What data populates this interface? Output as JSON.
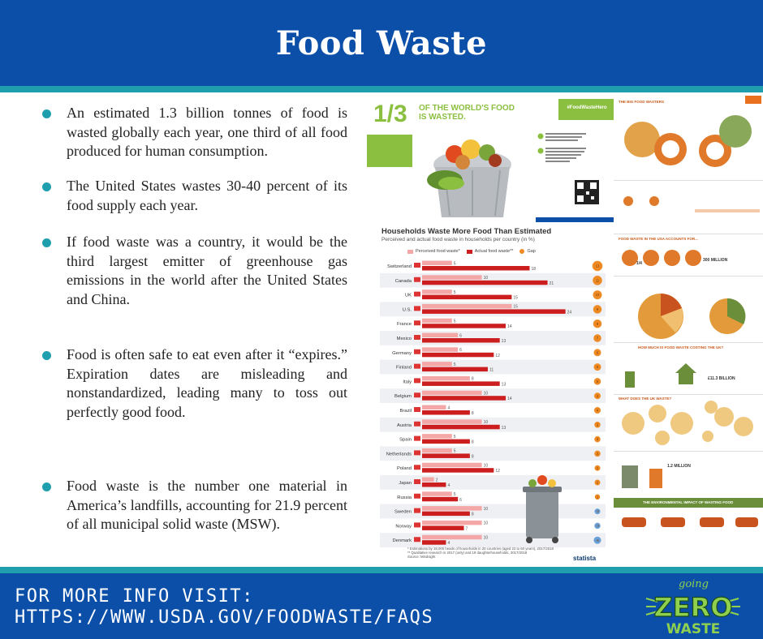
{
  "header": {
    "title": "Food Waste"
  },
  "bullets": [
    "An estimated 1.3 billion tonnes of food is wasted globally each year, one third of all food produced for human consumption.",
    "The United States wastes 30-40 percent of its food supply each year.",
    "If food waste was a country, it would be the third largest emitter of greenhouse gas emissions in the world after the United States and China.",
    "Food is often safe to eat even after it “expires.” Expiration dates are misleading and nonstandardized, leading many to toss out perfectly good food.",
    "Food waste is the number one material in America’s landfills, accounting for 21.9 percent of all municipal solid waste (MSW)."
  ],
  "footer": {
    "line1": "FOR MORE INFO VISIT:",
    "line2": "HTTPS://WWW.USDA.GOV/FOODWASTE/FAQS"
  },
  "logo": {
    "line1": "going",
    "line2": "ZERO",
    "line3": "WASTE"
  },
  "top_infographic": {
    "fraction": "1/3",
    "headline": "OF THE WORLD'S FOOD IS WASTED.",
    "hashtag": "#FoodWasteHero"
  },
  "colors": {
    "header_blue": "#0b4fa8",
    "stripe_teal": "#1f9fae",
    "bar_perceived": "#f4a7a7",
    "bar_actual": "#cc1e1e",
    "gap_orange": "#ee8a23",
    "gap_blue": "#6aa0d8"
  },
  "chart_data": {
    "type": "bar",
    "title": "Households Waste More Food Than Estimated",
    "subtitle": "Perceived and actual food waste in households per country (in %)",
    "legend": [
      "Perceived food waste*",
      "Actual food waste**",
      "Gap"
    ],
    "categories": [
      "Switzerland",
      "Canada",
      "UK",
      "U.S.",
      "France",
      "Mexico",
      "Germany",
      "Finland",
      "Italy",
      "Belgium",
      "Brazil",
      "Austria",
      "Spain",
      "Netherlands",
      "Poland",
      "Japan",
      "Russia",
      "Sweden",
      "Norway",
      "Denmark"
    ],
    "series": [
      {
        "name": "Perceived food waste*",
        "values": [
          5,
          10,
          5,
          15,
          5,
          6,
          6,
          5,
          8,
          10,
          4,
          10,
          5,
          5,
          10,
          2,
          5,
          10,
          10,
          10
        ]
      },
      {
        "name": "Actual food waste**",
        "values": [
          18,
          21,
          15,
          24,
          14,
          13,
          12,
          11,
          13,
          14,
          8,
          13,
          8,
          8,
          12,
          4,
          6,
          8,
          7,
          4
        ]
      },
      {
        "name": "Gap",
        "values": [
          13,
          11,
          10,
          9,
          9,
          7,
          6,
          6,
          5,
          4,
          4,
          3,
          3,
          3,
          2,
          2,
          1,
          -2,
          -3,
          -6
        ]
      }
    ],
    "footnote": "* Estimations by 18,000 heads of households in 20 countries (aged 22 to 60 years), 2017/2018\n** Qualitative research in 2017 (only) and 19 daughterhouseholds, 2017/2018",
    "source": "Source: Mindsight",
    "brand": "statista"
  },
  "right_infographic": {
    "title": "THE BIG FOOD WASTERS",
    "section1": "FOOD WASTE IN THE USA ACCOUNTS FOR...",
    "stat1": "1/4",
    "stat2": "300 MILLION",
    "section2": "HOW MUCH IS FOOD WASTE COSTING THE UK?",
    "stat3": "£11.3 BILLION",
    "section3": "WHAT DOES THE UK WASTE?",
    "stat4": "1.2 MILLION",
    "section4": "THE ENVIRONMENTAL IMPACT OF WASTING FOOD"
  }
}
